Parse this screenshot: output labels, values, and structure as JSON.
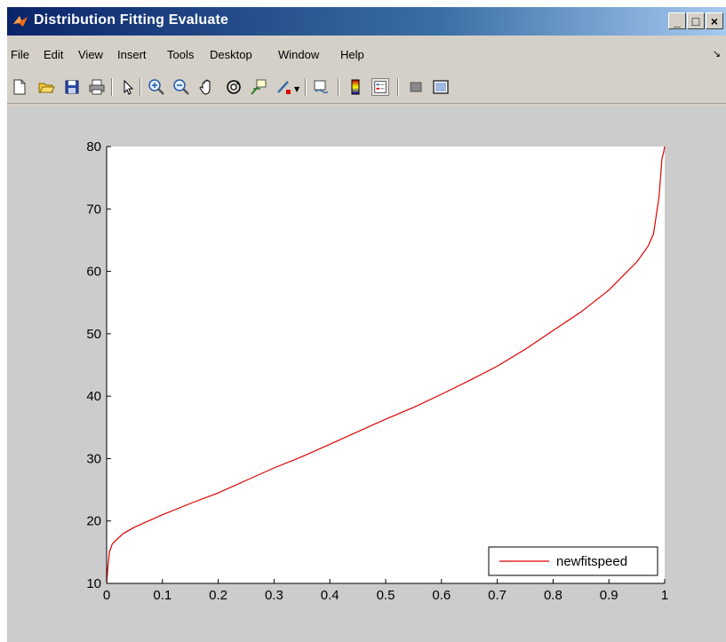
{
  "window": {
    "title": "Distribution Fitting Evaluate",
    "buttons": {
      "minimize": "_",
      "maximize": "□",
      "close": "×"
    }
  },
  "menubar": {
    "items": [
      "File",
      "Edit",
      "View",
      "Insert",
      "Tools",
      "Desktop",
      "Window",
      "Help"
    ]
  },
  "toolbar": {
    "buttons": [
      "new-file-icon",
      "open-folder-icon",
      "save-icon",
      "print-icon",
      "pointer-icon",
      "zoom-in-icon",
      "zoom-out-icon",
      "pan-hand-icon",
      "rotate-3d-icon",
      "data-cursor-icon",
      "brush-icon",
      "link-plot-icon",
      "colorbar-icon",
      "legend-icon",
      "hide-plot-tools-icon",
      "show-plot-tools-icon"
    ]
  },
  "colors": {
    "line": "#e00000",
    "axes_bg": "#ffffff",
    "figure_bg": "#cccccc"
  },
  "chart_data": {
    "type": "line",
    "title": "",
    "xlabel": "",
    "ylabel": "",
    "xlim": [
      0,
      1
    ],
    "ylim": [
      10,
      80
    ],
    "xticks": [
      "0",
      "0.1",
      "0.2",
      "0.3",
      "0.4",
      "0.5",
      "0.6",
      "0.7",
      "0.8",
      "0.9",
      "1"
    ],
    "yticks": [
      "10",
      "20",
      "30",
      "40",
      "50",
      "60",
      "70",
      "80"
    ],
    "grid": false,
    "legend": {
      "placement": "bottom-right",
      "entries": [
        "newfitspeed"
      ]
    },
    "series": [
      {
        "name": "newfitspeed",
        "color": "#e00000",
        "x": [
          0,
          0.002,
          0.005,
          0.01,
          0.02,
          0.03,
          0.05,
          0.075,
          0.1,
          0.15,
          0.2,
          0.25,
          0.3,
          0.35,
          0.4,
          0.45,
          0.5,
          0.55,
          0.6,
          0.65,
          0.7,
          0.75,
          0.8,
          0.85,
          0.9,
          0.93,
          0.95,
          0.97,
          0.98,
          0.99,
          0.995,
          0.998,
          1.0
        ],
        "y": [
          10,
          12.5,
          15,
          16.3,
          17.2,
          18,
          19,
          20,
          21,
          22.8,
          24.5,
          26.5,
          28.5,
          30.3,
          32.3,
          34.3,
          36.3,
          38.2,
          40.3,
          42.5,
          44.8,
          47.5,
          50.5,
          53.5,
          57,
          59.7,
          61.5,
          64,
          66,
          72,
          78,
          79,
          80
        ]
      }
    ]
  }
}
